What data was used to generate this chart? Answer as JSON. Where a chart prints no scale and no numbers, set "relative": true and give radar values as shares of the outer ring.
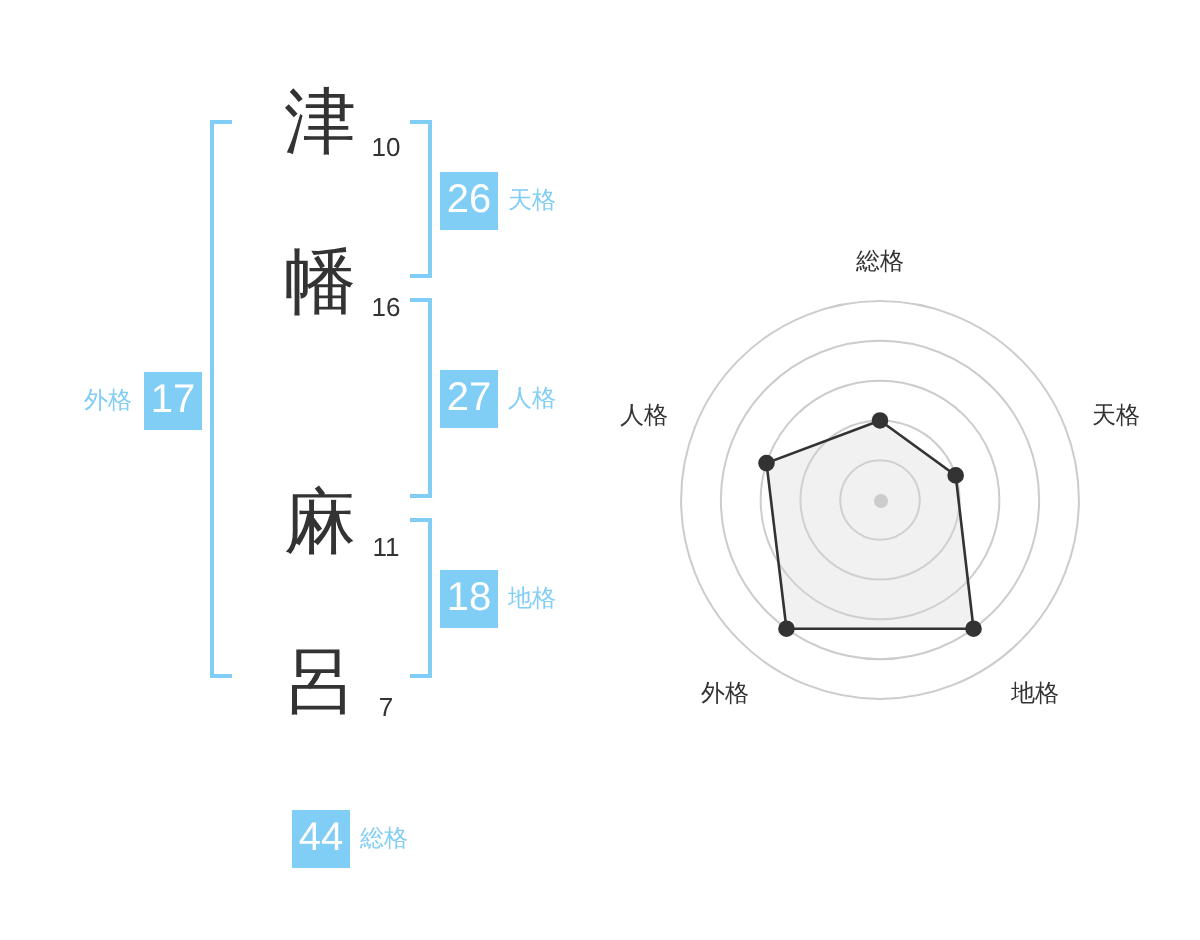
{
  "chart_data": [
    {
      "type": "other",
      "categories": [
        "津",
        "幡",
        "麻",
        "呂"
      ],
      "values": [
        10,
        16,
        11,
        7
      ],
      "data_labels": true
    },
    {
      "type": "other",
      "categories": [
        "天格",
        "人格",
        "地格",
        "外格",
        "総格"
      ],
      "values": [
        26,
        27,
        18,
        17,
        44
      ],
      "color": "#80cdf5",
      "data_labels": true
    },
    {
      "type": "radar",
      "categories": [
        "総格",
        "天格",
        "地格",
        "外格",
        "人格"
      ],
      "relative": true,
      "grid": true,
      "marker": "circle",
      "series": [
        {
          "color": "#333333",
          "values": [
            0.4,
            0.4,
            0.8,
            0.8,
            0.6
          ]
        }
      ]
    }
  ]
}
